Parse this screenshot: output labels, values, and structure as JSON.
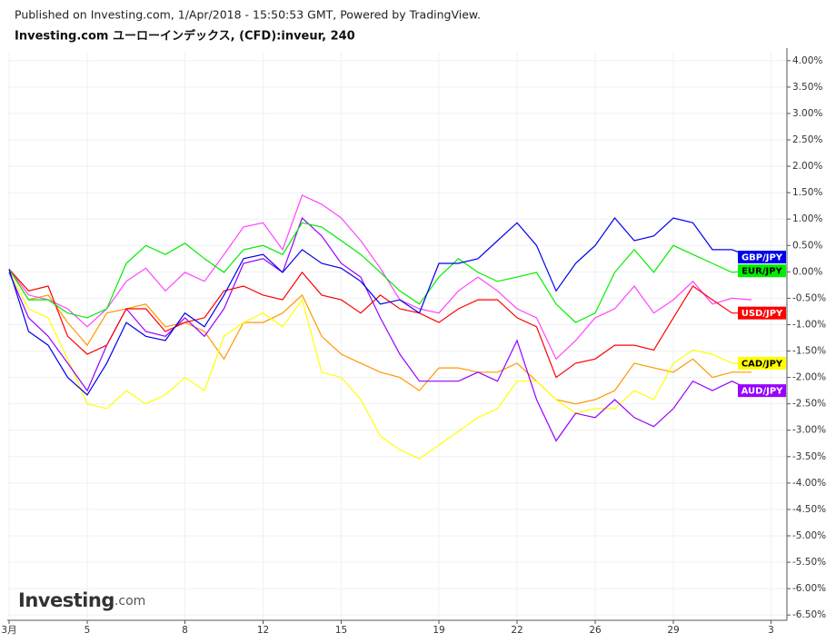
{
  "chart_data": {
    "type": "line",
    "subtitle": "Published on Investing.com, 1/Apr/2018 - 15:50:53 GMT, Powered by TradingView.",
    "title": "Investing.com ユーローインデックス, (CFD):inveur, 240",
    "watermark": {
      "brand": "Investing",
      "suffix": ".com"
    },
    "grid": true,
    "categories": [
      "3月",
      null,
      null,
      null,
      "5",
      null,
      null,
      null,
      null,
      "8",
      null,
      null,
      null,
      "12",
      null,
      null,
      null,
      "15",
      null,
      null,
      null,
      null,
      "19",
      null,
      null,
      null,
      "22",
      null,
      null,
      null,
      "26",
      null,
      null,
      null,
      "29",
      null,
      null,
      null,
      null,
      "3"
    ],
    "ylim": [
      -6.6,
      4.1
    ],
    "yticks": [
      {
        "value": 4.0,
        "label": "4.00%"
      },
      {
        "value": 3.5,
        "label": "3.50%"
      },
      {
        "value": 3.0,
        "label": "3.00%"
      },
      {
        "value": 2.5,
        "label": "2.50%"
      },
      {
        "value": 2.0,
        "label": "2.00%"
      },
      {
        "value": 1.5,
        "label": "1.50%"
      },
      {
        "value": 1.0,
        "label": "1.00%"
      },
      {
        "value": 0.5,
        "label": "0.50%"
      },
      {
        "value": 0.0,
        "label": "0.00%"
      },
      {
        "value": -0.5,
        "label": "-0.50%"
      },
      {
        "value": -1.0,
        "label": "-1.00%"
      },
      {
        "value": -1.5,
        "label": "-1.50%"
      },
      {
        "value": -2.0,
        "label": "-2.00%"
      },
      {
        "value": -2.5,
        "label": "-2.50%"
      },
      {
        "value": -3.0,
        "label": "-3.00%"
      },
      {
        "value": -3.5,
        "label": "-3.50%"
      },
      {
        "value": -4.0,
        "label": "-4.00%"
      },
      {
        "value": -4.5,
        "label": "-4.50%"
      },
      {
        "value": -5.0,
        "label": "-5.00%"
      },
      {
        "value": -5.5,
        "label": "-5.50%"
      },
      {
        "value": -6.0,
        "label": "-6.00%"
      },
      {
        "value": -6.5,
        "label": "-6.50%"
      }
    ],
    "series": [
      {
        "color": "#ff9900",
        "values": [
          0.05,
          -0.53,
          -0.44,
          -0.96,
          -1.39,
          -0.78,
          -0.7,
          -0.61,
          -1.04,
          -0.96,
          -1.13,
          -1.65,
          -0.96,
          -0.96,
          -0.78,
          -0.44,
          -1.22,
          -1.56,
          -1.73,
          -1.9,
          -2.0,
          -2.25,
          -1.82,
          -1.82,
          -1.9,
          -1.9,
          -1.73,
          -2.07,
          -2.42,
          -2.5,
          -2.42,
          -2.25,
          -1.73,
          -1.82,
          -1.9,
          -1.65,
          -2.0,
          -1.9,
          -1.9,
          null
        ]
      },
      {
        "color": "#ff44ff",
        "values": [
          0.05,
          -0.44,
          -0.53,
          -0.7,
          -1.04,
          -0.7,
          -0.18,
          0.07,
          -0.36,
          -0.01,
          -0.18,
          0.33,
          0.85,
          0.93,
          0.42,
          1.45,
          1.28,
          1.02,
          0.59,
          0.07,
          -0.53,
          -0.7,
          -0.78,
          -0.36,
          -0.1,
          -0.36,
          -0.7,
          -0.87,
          -1.65,
          -1.3,
          -0.87,
          -0.7,
          -0.27,
          -0.78,
          -0.53,
          -0.18,
          -0.61,
          -0.5,
          -0.53,
          null
        ]
      },
      {
        "name": "CAD/JPY",
        "color": "#ffff00",
        "values": [
          -0.01,
          -0.7,
          -0.87,
          -1.65,
          -2.5,
          -2.59,
          -2.25,
          -2.5,
          -2.33,
          -2.0,
          -2.25,
          -1.22,
          -0.96,
          -0.78,
          -1.04,
          -0.53,
          -1.9,
          -2.0,
          -2.42,
          -3.11,
          -3.37,
          -3.54,
          -3.28,
          -3.02,
          -2.76,
          -2.59,
          -2.07,
          -2.07,
          -2.42,
          -2.68,
          -2.59,
          -2.59,
          -2.25,
          -2.42,
          -1.73,
          -1.48,
          -1.56,
          -1.73,
          -1.73,
          null
        ]
      },
      {
        "name": "AUD/JPY",
        "color": "#9900ff",
        "values": [
          -0.01,
          -0.87,
          -1.22,
          -1.73,
          -2.25,
          -1.39,
          -0.7,
          -1.13,
          -1.22,
          -0.87,
          -1.22,
          -0.7,
          0.16,
          0.25,
          -0.01,
          1.02,
          0.68,
          0.16,
          -0.1,
          -0.87,
          -1.56,
          -2.07,
          -2.07,
          -2.07,
          -1.9,
          -2.07,
          -1.3,
          -2.42,
          -3.2,
          -2.68,
          -2.76,
          -2.42,
          -2.76,
          -2.93,
          -2.59,
          -2.07,
          -2.25,
          -2.07,
          -2.25,
          null
        ]
      },
      {
        "name": "USD/JPY",
        "color": "#ff0000",
        "values": [
          0.05,
          -0.36,
          -0.27,
          -1.22,
          -1.56,
          -1.39,
          -0.7,
          -0.7,
          -1.13,
          -0.96,
          -0.87,
          -0.36,
          -0.27,
          -0.44,
          -0.53,
          -0.01,
          -0.44,
          -0.53,
          -0.78,
          -0.44,
          -0.7,
          -0.78,
          -0.96,
          -0.7,
          -0.53,
          -0.53,
          -0.87,
          -1.04,
          -2.0,
          -1.73,
          -1.65,
          -1.39,
          -1.39,
          -1.48,
          -0.87,
          -0.27,
          -0.53,
          -0.78,
          -0.78,
          null
        ]
      },
      {
        "name": "EUR/JPY",
        "color": "#00ee00",
        "values": [
          0.05,
          -0.53,
          -0.53,
          -0.78,
          -0.87,
          -0.7,
          0.16,
          0.5,
          0.33,
          0.54,
          0.25,
          -0.01,
          0.42,
          0.5,
          0.33,
          0.93,
          0.85,
          0.59,
          0.33,
          -0.01,
          -0.36,
          -0.61,
          -0.1,
          0.25,
          -0.01,
          -0.18,
          -0.1,
          -0.01,
          -0.61,
          -0.96,
          -0.78,
          -0.01,
          0.42,
          -0.01,
          0.5,
          0.33,
          0.16,
          -0.01,
          0.02,
          null
        ]
      },
      {
        "name": "GBP/JPY",
        "color": "#0000ee",
        "values": [
          0.05,
          -1.13,
          -1.39,
          -2.0,
          -2.33,
          -1.73,
          -0.96,
          -1.22,
          -1.3,
          -0.78,
          -1.04,
          -0.44,
          0.25,
          0.33,
          -0.01,
          0.42,
          0.16,
          0.07,
          -0.18,
          -0.61,
          -0.53,
          -0.78,
          0.16,
          0.16,
          0.25,
          0.59,
          0.93,
          0.5,
          -0.36,
          0.16,
          0.5,
          1.02,
          0.59,
          0.68,
          1.02,
          0.93,
          0.42,
          0.42,
          0.28,
          null
        ]
      }
    ]
  }
}
